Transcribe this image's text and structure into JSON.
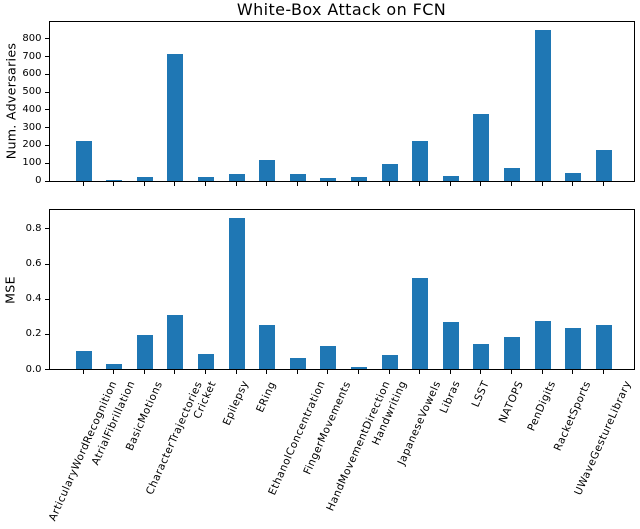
{
  "title": "White-Box Attack on FCN",
  "colors": {
    "bar": "#1f77b4",
    "axis": "#000000",
    "text": "#000000"
  },
  "categories": [
    "ArticularyWordRecognition",
    "AtrialFibrillation",
    "BasicMotions",
    "CharacterTrajectories",
    "Cricket",
    "Epilepsy",
    "ERing",
    "EthanolConcentration",
    "FingerMovements",
    "HandMovementDirection",
    "Handwriting",
    "JapaneseVowels",
    "Libras",
    "LSST",
    "NATOPS",
    "PenDigits",
    "RacketSports",
    "UWaveGestureLibrary"
  ],
  "chart_data": [
    {
      "type": "bar",
      "title": "White-Box Attack on FCN",
      "ylabel": "Num. Adversaries",
      "xlabel": "",
      "categories": [
        "ArticularyWordRecognition",
        "AtrialFibrillation",
        "BasicMotions",
        "CharacterTrajectories",
        "Cricket",
        "Epilepsy",
        "ERing",
        "EthanolConcentration",
        "FingerMovements",
        "HandMovementDirection",
        "Handwriting",
        "JapaneseVowels",
        "Libras",
        "LSST",
        "NATOPS",
        "PenDigits",
        "RacketSports",
        "UWaveGestureLibrary"
      ],
      "values": [
        220,
        1,
        17,
        710,
        20,
        35,
        115,
        37,
        14,
        18,
        95,
        225,
        25,
        375,
        70,
        845,
        42,
        170
      ],
      "ytick_values": [
        0,
        100,
        200,
        300,
        400,
        500,
        600,
        700,
        800
      ],
      "ytick_labels": [
        "0",
        "100",
        "200",
        "300",
        "400",
        "500",
        "600",
        "700",
        "800"
      ],
      "ylim": [
        0,
        900
      ],
      "grid": false,
      "legend": null
    },
    {
      "type": "bar",
      "title": "",
      "ylabel": "MSE",
      "xlabel": "",
      "categories": [
        "ArticularyWordRecognition",
        "AtrialFibrillation",
        "BasicMotions",
        "CharacterTrajectories",
        "Cricket",
        "Epilepsy",
        "ERing",
        "EthanolConcentration",
        "FingerMovements",
        "HandMovementDirection",
        "Handwriting",
        "JapaneseVowels",
        "Libras",
        "LSST",
        "NATOPS",
        "PenDigits",
        "RacketSports",
        "UWaveGestureLibrary"
      ],
      "values": [
        0.105,
        0.027,
        0.195,
        0.305,
        0.085,
        0.86,
        0.25,
        0.062,
        0.133,
        0.012,
        0.08,
        0.515,
        0.265,
        0.143,
        0.18,
        0.273,
        0.235,
        0.25
      ],
      "ytick_values": [
        0.0,
        0.2,
        0.4,
        0.6,
        0.8
      ],
      "ytick_labels": [
        "0.0",
        "0.2",
        "0.4",
        "0.6",
        "0.8"
      ],
      "ylim": [
        0,
        0.91
      ],
      "grid": false,
      "legend": null
    }
  ]
}
